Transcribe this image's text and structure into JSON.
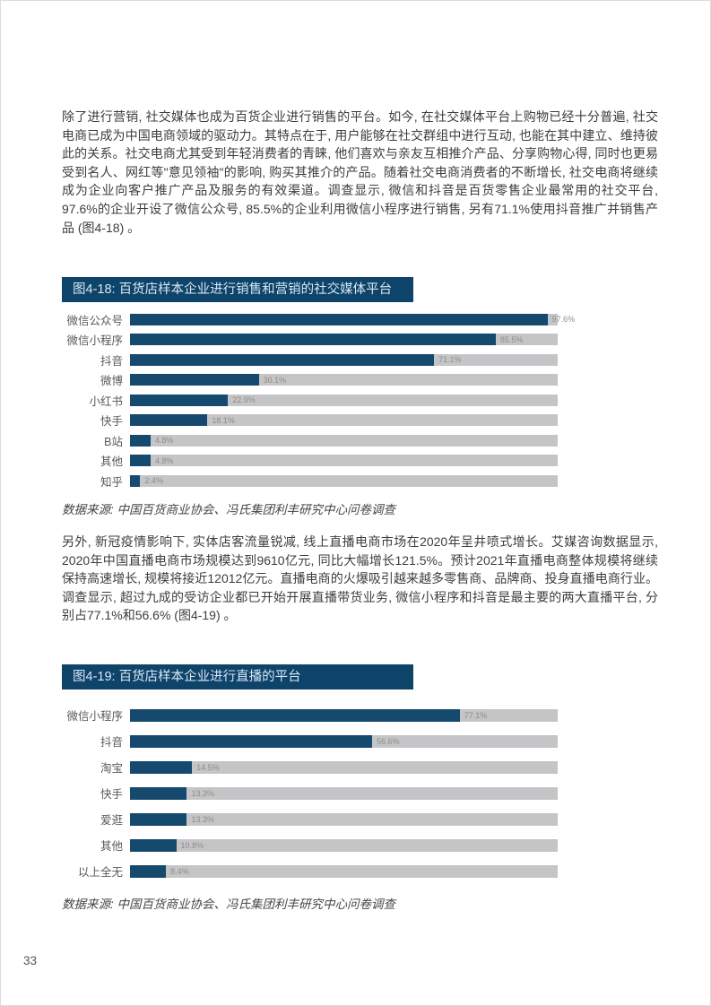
{
  "page_number": "33",
  "paragraphs": [
    "除了进行营销, 社交媒体也成为百货企业进行销售的平台。如今, 在社交媒体平台上购物已经十分普遍, 社交电商已成为中国电商领域的驱动力。其特点在于, 用户能够在社交群组中进行互动, 也能在其中建立、维持彼此的关系。社交电商尤其受到年轻消费者的青睐, 他们喜欢与亲友互相推介产品、分享购物心得, 同时也更易受到名人、网红等\"意见领袖\"的影响, 购买其推介的产品。随着社交电商消费者的不断增长, 社交电商将继续成为企业向客户推广产品及服务的有效渠道。调查显示, 微信和抖音是百货零售企业最常用的社交平台, 97.6%的企业开设了微信公众号, 85.5%的企业利用微信小程序进行销售, 另有71.1%使用抖音推广并销售产品 (图4-18) 。",
    "另外, 新冠疫情影响下, 实体店客流量锐减, 线上直播电商市场在2020年呈井喷式增长。艾媒咨询数据显示, 2020年中国直播电商市场规模达到9610亿元, 同比大幅增长121.5%。预计2021年直播电商整体规模将继续保持高速增长, 规模将接近12012亿元。直播电商的火爆吸引越来越多零售商、品牌商、投身直播电商行业。调查显示, 超过九成的受访企业都已开始开展直播带货业务, 微信小程序和抖音是最主要的两大直播平台, 分别占77.1%和56.6% (图4-19) 。"
  ],
  "colors": {
    "bar": "#15496d",
    "track": "#c5c5c7",
    "title_bg": "#0e436a",
    "title_text": "#d8e7f3",
    "value_label": "#8d8d8d",
    "category_label": "#595959",
    "body_text": "#3d3d3d"
  },
  "charts": [
    {
      "title": "图4-18: 百货店样本企业进行销售和营销的社交媒体平台",
      "source": "数据来源: 中国百货商业协会、冯氏集团利丰研究中心问卷调查",
      "rows": [
        {
          "label": "微信公众号",
          "value": 97.6,
          "value_label": "97.6%"
        },
        {
          "label": "微信小程序",
          "value": 85.5,
          "value_label": "85.5%"
        },
        {
          "label": "抖音",
          "value": 71.1,
          "value_label": "71.1%"
        },
        {
          "label": "微博",
          "value": 30.1,
          "value_label": "30.1%"
        },
        {
          "label": "小红书",
          "value": 22.9,
          "value_label": "22.9%"
        },
        {
          "label": "快手",
          "value": 18.1,
          "value_label": "18.1%"
        },
        {
          "label": "B站",
          "value": 4.8,
          "value_label": "4.8%"
        },
        {
          "label": "其他",
          "value": 4.8,
          "value_label": "4.8%"
        },
        {
          "label": "知乎",
          "value": 2.4,
          "value_label": "2.4%"
        }
      ]
    },
    {
      "title": "图4-19: 百货店样本企业进行直播的平台",
      "source": "数据来源: 中国百货商业协会、冯氏集团利丰研究中心问卷调查",
      "rows": [
        {
          "label": "微信小程序",
          "value": 77.1,
          "value_label": "77.1%"
        },
        {
          "label": "抖音",
          "value": 56.6,
          "value_label": "56.6%"
        },
        {
          "label": "淘宝",
          "value": 14.5,
          "value_label": "14.5%"
        },
        {
          "label": "快手",
          "value": 13.3,
          "value_label": "13.3%"
        },
        {
          "label": "爱逛",
          "value": 13.3,
          "value_label": "13.3%"
        },
        {
          "label": "其他",
          "value": 10.8,
          "value_label": "10.8%"
        },
        {
          "label": "以上全无",
          "value": 8.4,
          "value_label": "8.4%"
        }
      ]
    }
  ],
  "chart_data": [
    {
      "type": "bar",
      "orientation": "horizontal",
      "title": "图4-18: 百货店样本企业进行销售和营销的社交媒体平台",
      "categories": [
        "微信公众号",
        "微信小程序",
        "抖音",
        "微博",
        "小红书",
        "快手",
        "B站",
        "其他",
        "知乎"
      ],
      "values": [
        97.6,
        85.5,
        71.1,
        30.1,
        22.9,
        18.1,
        4.8,
        4.8,
        2.4
      ],
      "xlabel": "",
      "ylabel": "",
      "xlim": [
        0,
        100
      ],
      "unit": "%",
      "grid": false,
      "legend": false,
      "source": "数据来源: 中国百货商业协会、冯氏集团利丰研究中心问卷调查"
    },
    {
      "type": "bar",
      "orientation": "horizontal",
      "title": "图4-19: 百货店样本企业进行直播的平台",
      "categories": [
        "微信小程序",
        "抖音",
        "淘宝",
        "快手",
        "爱逛",
        "其他",
        "以上全无"
      ],
      "values": [
        77.1,
        56.6,
        14.5,
        13.3,
        13.3,
        10.8,
        8.4
      ],
      "xlabel": "",
      "ylabel": "",
      "xlim": [
        0,
        100
      ],
      "unit": "%",
      "grid": false,
      "legend": false,
      "source": "数据来源: 中国百货商业协会、冯氏集团利丰研究中心问卷调查"
    }
  ]
}
